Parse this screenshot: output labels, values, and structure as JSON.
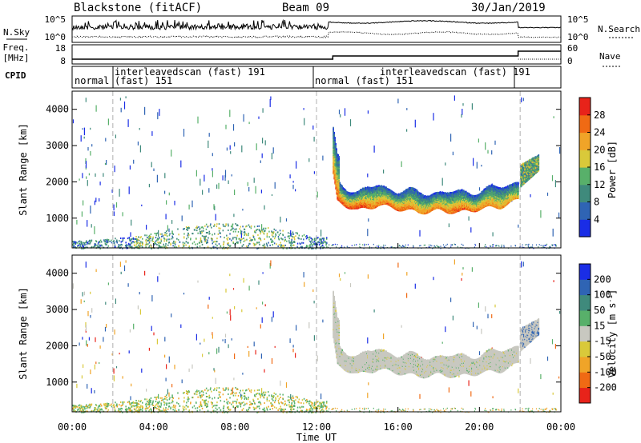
{
  "header": {
    "station": "Blackstone (fitACF)",
    "beam": "Beam 09",
    "date": "30/Jan/2019"
  },
  "left_labels": {
    "nsky": "N.Sky",
    "freq": "Freq.",
    "freq_unit": "[MHz]",
    "cpid": "CPID"
  },
  "right_labels": {
    "nsearch": "N.Search",
    "nave": "Nave"
  },
  "noise_ticks_left": [
    "10^5",
    "10^0"
  ],
  "noise_ticks_right": [
    "10^5",
    "10^0"
  ],
  "freq_ticks": [
    "18",
    "8"
  ],
  "nave_ticks": [
    "60",
    "0"
  ],
  "cpid_segments": [
    {
      "line1": "normal",
      "line2": ""
    },
    {
      "line1": "interleavedscan (fast) 191",
      "line2": "(fast) 151"
    },
    {
      "line1": "normal (fast) 151",
      "line2": ""
    },
    {
      "line1": "interleavedscan (fast) 191",
      "line2": ""
    }
  ],
  "colors": {
    "power": [
      "#1a2de6",
      "#2f64b4",
      "#3f8a7c",
      "#58b06a",
      "#d9c93a",
      "#f0a428",
      "#f06a14",
      "#e8231a"
    ],
    "velocity": [
      "#e8231a",
      "#f06a14",
      "#f0a428",
      "#d9c93a",
      "#c8c8c0",
      "#58b06a",
      "#3f8a7c",
      "#2f64b4",
      "#1a2de6"
    ]
  },
  "chart_data": [
    {
      "type": "heatmap",
      "ylabel": "Slant Range [km]",
      "x_range_hours": [
        0,
        24
      ],
      "ylim": [
        180,
        4500
      ],
      "y_ticks": [
        "4000",
        "3000",
        "2000",
        "1000"
      ],
      "colorbar_label": "Power [dB]",
      "colorbar_ticks": [
        "28",
        "24",
        "20",
        "16",
        "12",
        "8",
        "4"
      ],
      "colorbar_range": [
        0,
        30
      ],
      "dashed_lines_hours": [
        2,
        12,
        22
      ],
      "echo_band": {
        "time_hours": [
          12.8,
          13.0,
          14.0,
          15.0,
          16.0,
          17.0,
          18.0,
          19.0,
          20.0,
          21.0,
          21.9
        ],
        "range_km": [
          2300,
          1600,
          1350,
          1500,
          1400,
          1300,
          1350,
          1300,
          1400,
          1450,
          1650
        ],
        "power_db": [
          18,
          20,
          22,
          18,
          20,
          16,
          18,
          20,
          18,
          16,
          14
        ]
      },
      "ground_scatter_hours": [
        0,
        12.5
      ],
      "ground_scatter_range_km": [
        180,
        600
      ],
      "late_echo_range_km": [
        1900,
        2500
      ]
    },
    {
      "type": "heatmap",
      "ylabel": "Slant Range [km]",
      "xlabel": "Time UT",
      "x_ticks": [
        "00:00",
        "04:00",
        "08:00",
        "12:00",
        "16:00",
        "20:00",
        "00:00"
      ],
      "ylim": [
        180,
        4500
      ],
      "y_ticks": [
        "4000",
        "3000",
        "2000",
        "1000"
      ],
      "colorbar_label": "Velocity [m s^-1]",
      "colorbar_ticks": [
        "200",
        "100",
        "50",
        "15",
        "-15",
        "-50",
        "-100",
        "-200"
      ],
      "dashed_lines_hours": [
        2,
        12,
        22
      ],
      "dominant_velocity_band": "-15 to 15",
      "ground_scatter_velocity": "15 to 50"
    }
  ]
}
